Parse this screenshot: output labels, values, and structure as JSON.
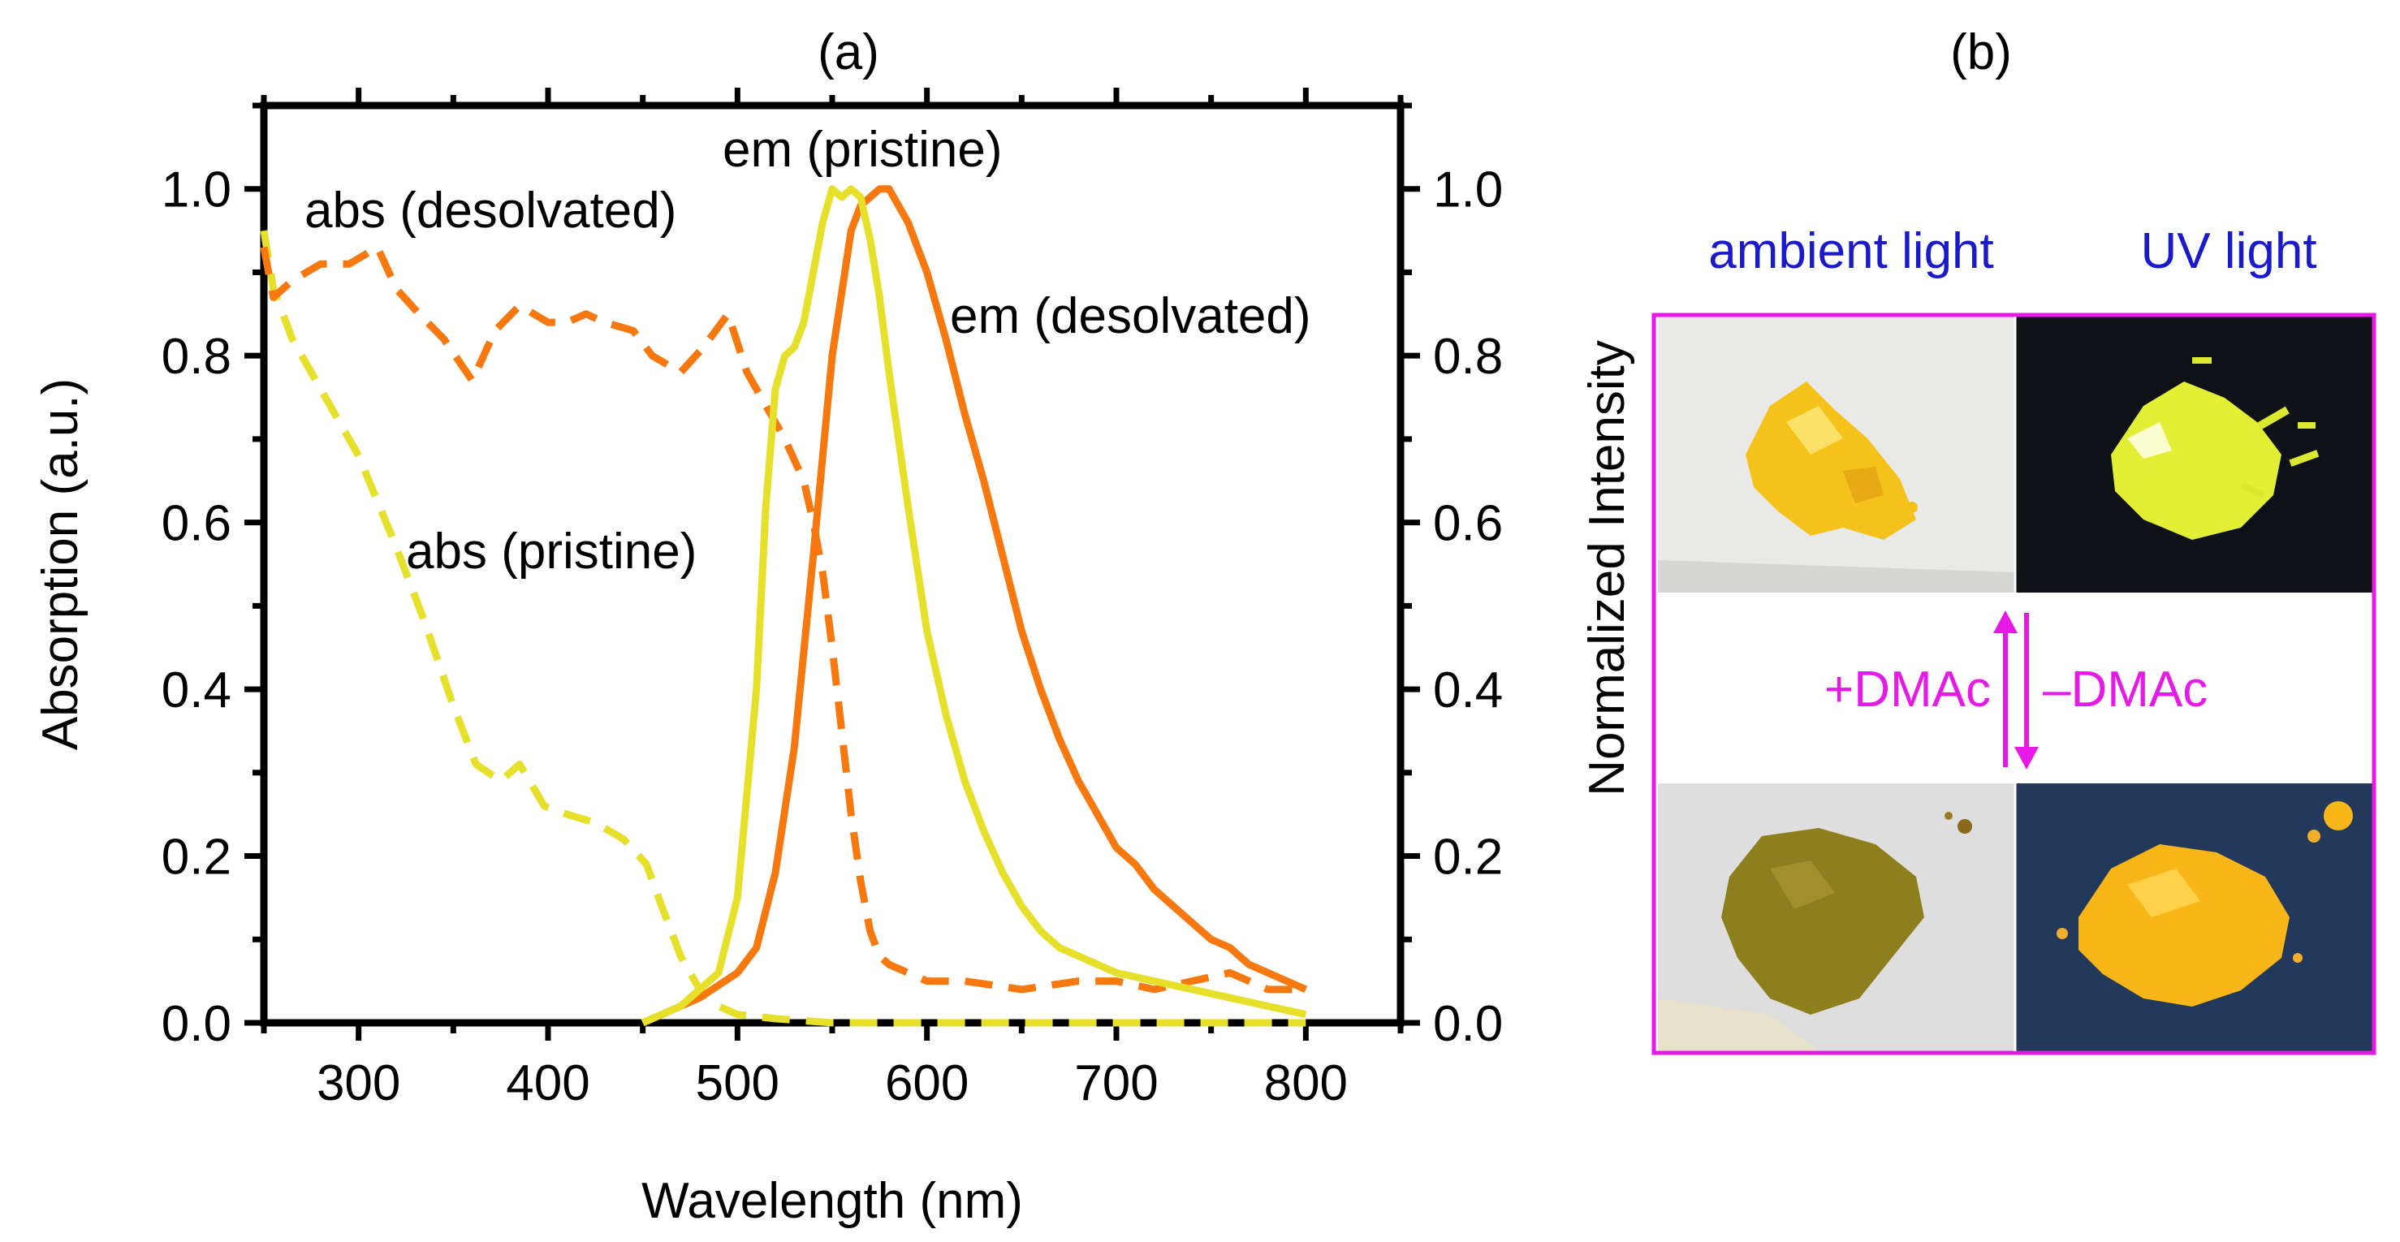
{
  "chart_data": {
    "type": "line",
    "panel_label": "(a)",
    "xlabel": "Wavelength (nm)",
    "ylabel_left": "Absorption (a.u.)",
    "ylabel_right": "Normalized Intensity",
    "xlim": [
      250,
      850
    ],
    "ylim": [
      0,
      1.1
    ],
    "x_ticks": [
      300,
      400,
      500,
      600,
      700,
      800
    ],
    "y_ticks": [
      0.0,
      0.2,
      0.4,
      0.6,
      0.8,
      1.0
    ],
    "y_tick_labels": [
      "0.0",
      "0.2",
      "0.4",
      "0.6",
      "0.8",
      "1.0"
    ],
    "colors": {
      "pristine": "#e6e02a",
      "desolvated": "#f7780f",
      "axis": "#000000"
    },
    "series": [
      {
        "name": "abs (desolvated)",
        "label": "abs (desolvated)",
        "style": "dashed",
        "color": "#f7780f",
        "x": [
          250,
          255,
          265,
          280,
          295,
          310,
          320,
          332,
          345,
          360,
          372,
          385,
          400,
          410,
          420,
          430,
          445,
          455,
          470,
          482,
          495,
          505,
          515,
          525,
          535,
          540,
          545,
          550,
          555,
          560,
          565,
          570,
          575,
          580,
          590,
          600,
          620,
          650,
          680,
          700,
          720,
          740,
          760,
          780,
          800
        ],
        "y": [
          0.93,
          0.87,
          0.89,
          0.91,
          0.91,
          0.93,
          0.88,
          0.85,
          0.82,
          0.77,
          0.83,
          0.86,
          0.84,
          0.84,
          0.85,
          0.84,
          0.83,
          0.8,
          0.78,
          0.81,
          0.85,
          0.78,
          0.74,
          0.7,
          0.65,
          0.6,
          0.54,
          0.45,
          0.35,
          0.25,
          0.17,
          0.11,
          0.08,
          0.07,
          0.06,
          0.05,
          0.05,
          0.04,
          0.05,
          0.05,
          0.04,
          0.05,
          0.06,
          0.04,
          0.04
        ]
      },
      {
        "name": "abs (pristine)",
        "label": "abs (pristine)",
        "style": "dashed",
        "color": "#e6e02a",
        "x": [
          250,
          255,
          265,
          280,
          300,
          320,
          335,
          350,
          362,
          375,
          385,
          398,
          410,
          425,
          440,
          452,
          460,
          470,
          480,
          490,
          500,
          520,
          550,
          600,
          700,
          800
        ],
        "y": [
          0.95,
          0.88,
          0.82,
          0.76,
          0.68,
          0.57,
          0.48,
          0.38,
          0.31,
          0.29,
          0.31,
          0.26,
          0.25,
          0.24,
          0.22,
          0.19,
          0.14,
          0.08,
          0.04,
          0.02,
          0.01,
          0.005,
          0.0,
          0.0,
          0.0,
          0.0
        ]
      },
      {
        "name": "em (pristine)",
        "label": "em (pristine)",
        "style": "solid",
        "color": "#e6e02a",
        "x": [
          450,
          470,
          490,
          500,
          510,
          515,
          520,
          525,
          530,
          535,
          540,
          545,
          550,
          555,
          560,
          565,
          570,
          575,
          580,
          590,
          600,
          610,
          620,
          630,
          640,
          650,
          660,
          670,
          680,
          690,
          700,
          720,
          740,
          760,
          780,
          800
        ],
        "y": [
          0.0,
          0.02,
          0.06,
          0.15,
          0.4,
          0.62,
          0.76,
          0.8,
          0.81,
          0.84,
          0.9,
          0.96,
          1.0,
          0.99,
          1.0,
          0.99,
          0.94,
          0.87,
          0.78,
          0.62,
          0.47,
          0.37,
          0.29,
          0.23,
          0.18,
          0.14,
          0.11,
          0.09,
          0.08,
          0.07,
          0.06,
          0.05,
          0.04,
          0.03,
          0.02,
          0.01
        ]
      },
      {
        "name": "em (desolvated)",
        "label": "em (desolvated)",
        "style": "solid",
        "color": "#f7780f",
        "x": [
          450,
          460,
          480,
          500,
          510,
          520,
          530,
          540,
          550,
          560,
          565,
          570,
          575,
          580,
          590,
          600,
          610,
          620,
          630,
          640,
          650,
          660,
          670,
          680,
          690,
          700,
          710,
          720,
          730,
          740,
          750,
          760,
          770,
          780,
          790,
          800
        ],
        "y": [
          0.0,
          0.01,
          0.03,
          0.06,
          0.09,
          0.18,
          0.33,
          0.56,
          0.8,
          0.95,
          0.98,
          0.99,
          1.0,
          1.0,
          0.96,
          0.9,
          0.82,
          0.73,
          0.65,
          0.56,
          0.47,
          0.4,
          0.34,
          0.29,
          0.25,
          0.21,
          0.19,
          0.16,
          0.14,
          0.12,
          0.1,
          0.09,
          0.07,
          0.06,
          0.05,
          0.04
        ]
      }
    ]
  },
  "panel_b": {
    "label": "(b)",
    "col_labels": [
      "ambient light",
      "UV light"
    ],
    "col_label_color": "#1a1acc",
    "frame_color": "#e619e6",
    "arrow_left_label": "+DMAc",
    "arrow_right_label": "–DMAc",
    "photos": [
      {
        "name": "pristine-ambient-photo",
        "bg": "#e8e8e6",
        "sample": "#f2c21b"
      },
      {
        "name": "pristine-uv-photo",
        "bg": "#101418",
        "sample": "#e8f23a"
      },
      {
        "name": "desolvated-ambient-photo",
        "bg": "#dcdcdc",
        "sample": "#8f7f1c"
      },
      {
        "name": "desolvated-uv-photo",
        "bg": "#213a5c",
        "sample": "#f8b619"
      }
    ]
  }
}
